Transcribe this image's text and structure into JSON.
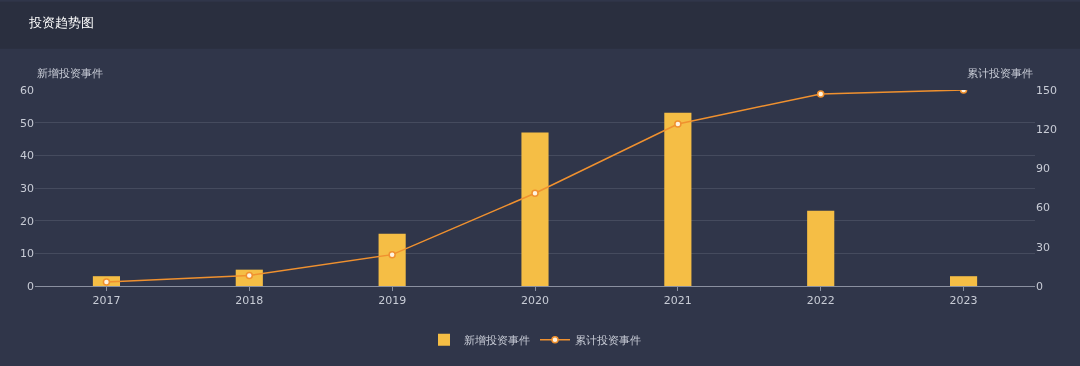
{
  "chart_data": {
    "type": "bar",
    "title": "投资趋势图",
    "ylabel": "新增投资事件",
    "y2label": "累计投资事件",
    "categories": [
      "2017",
      "2018",
      "2019",
      "2020",
      "2021",
      "2022",
      "2023"
    ],
    "series": [
      {
        "name": "新增投资事件",
        "color": "#f5be45",
        "values": [
          3,
          5,
          16,
          47,
          53,
          23,
          3
        ]
      },
      {
        "name": "累计投资事件",
        "type": "line",
        "axis": "y2",
        "color": "#f0912f",
        "marker": "circle",
        "values": [
          3,
          8,
          24,
          71,
          124,
          147,
          150
        ]
      }
    ],
    "ylim": [
      0,
      60
    ],
    "yticks": [
      0,
      10,
      20,
      30,
      40,
      50,
      60
    ],
    "y2lim": [
      0,
      150
    ],
    "y2ticks": [
      0,
      30,
      60,
      90,
      120,
      150
    ],
    "grid": "y",
    "legend": "bottom"
  }
}
